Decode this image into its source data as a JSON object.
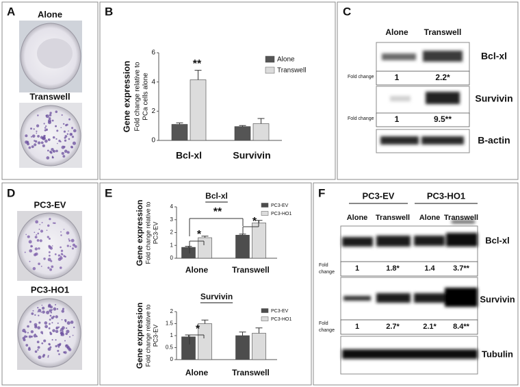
{
  "panels": {
    "A": {
      "label": "A",
      "top": "Alone",
      "bottom": "Transwell"
    },
    "B": {
      "label": "B"
    },
    "C": {
      "label": "C"
    },
    "D": {
      "label": "D",
      "top": "PC3-EV",
      "bottom": "PC3-HO1"
    },
    "E": {
      "label": "E"
    },
    "F": {
      "label": "F"
    }
  },
  "chart_data": [
    {
      "type": "bar",
      "ylabel": "Gene expression",
      "ylabel_sub": [
        "Fold change relative to",
        "PCa cells alone"
      ],
      "categories": [
        "Bcl-xl",
        "Survivin"
      ],
      "series": [
        {
          "name": "Alone",
          "color": "#555555",
          "values": [
            1.1,
            0.95
          ],
          "errors": [
            0.1,
            0.07
          ]
        },
        {
          "name": "Transwell",
          "color": "#dcdcdc",
          "values": [
            4.15,
            1.15
          ],
          "errors": [
            0.65,
            0.35
          ]
        }
      ],
      "ylim": [
        0,
        6
      ],
      "yticks": [
        0,
        2,
        4,
        6
      ],
      "annotations": [
        "**"
      ]
    },
    {
      "type": "bar",
      "title": "Bcl-xl",
      "ylabel": "Gene expression",
      "ylabel_sub": [
        "Fold change relative to",
        "PC3-EV"
      ],
      "categories": [
        "Alone",
        "Transwell"
      ],
      "series": [
        {
          "name": "PC3-EV",
          "color": "#4d4d4d",
          "values": [
            0.85,
            1.8
          ],
          "errors": [
            0.08,
            0.08
          ]
        },
        {
          "name": "PC3-HO1",
          "color": "#dcdcdc",
          "values": [
            1.6,
            2.75
          ],
          "errors": [
            0.12,
            0.2
          ]
        }
      ],
      "ylim": [
        0,
        4
      ],
      "yticks": [
        0,
        1,
        2,
        3,
        4
      ],
      "annotations": [
        "*",
        "*",
        "**"
      ]
    },
    {
      "type": "bar",
      "title": "Survivin",
      "ylabel": "Gene expression",
      "ylabel_sub": [
        "Fold change relative to",
        "PC3-EV"
      ],
      "categories": [
        "Alone",
        "Transwell"
      ],
      "series": [
        {
          "name": "PC3-EV",
          "color": "#4d4d4d",
          "values": [
            0.95,
            1.0
          ],
          "errors": [
            0.08,
            0.15
          ]
        },
        {
          "name": "PC3-HO1",
          "color": "#dcdcdc",
          "values": [
            1.5,
            1.1
          ],
          "errors": [
            0.15,
            0.22
          ]
        }
      ],
      "ylim": [
        0,
        2
      ],
      "yticks": [
        0,
        0.5,
        1,
        1.5,
        2
      ],
      "annotations": [
        "*"
      ]
    }
  ],
  "blot_c": {
    "lanes": [
      "Alone",
      "Transwell"
    ],
    "rows": [
      {
        "protein": "Bcl-xl",
        "fold_label": "Fold change",
        "fold": [
          "1",
          "2.2*"
        ]
      },
      {
        "protein": "Survivin",
        "fold_label": "Fold change",
        "fold": [
          "1",
          "9.5**"
        ]
      },
      {
        "protein": "B-actin"
      }
    ]
  },
  "blot_f": {
    "groups": [
      "PC3-EV",
      "PC3-HO1"
    ],
    "lanes": [
      "Alone",
      "Transwell",
      "Alone",
      "Transwell"
    ],
    "rows": [
      {
        "protein": "Bcl-xl",
        "fold_label": [
          "Fold",
          "change"
        ],
        "fold": [
          "1",
          "1.8*",
          "1.4",
          "3.7**"
        ]
      },
      {
        "protein": "Survivin",
        "fold_label": [
          "Fold",
          "change"
        ],
        "fold": [
          "1",
          "2.7*",
          "2.1*",
          "8.4**"
        ]
      },
      {
        "protein": "Tubulin"
      }
    ]
  }
}
